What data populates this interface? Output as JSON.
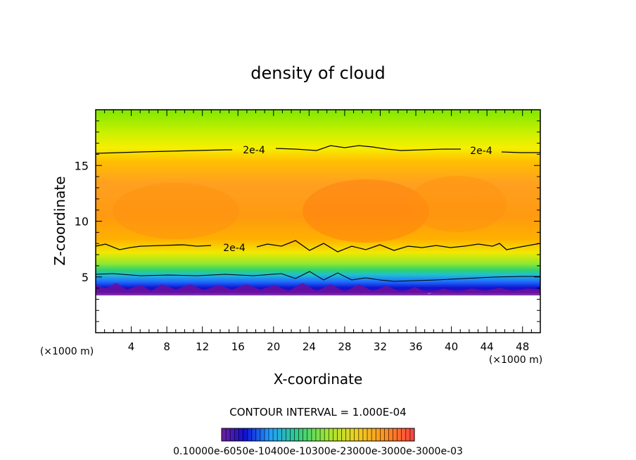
{
  "chart_data": {
    "type": "heatmap",
    "title": "density of cloud",
    "xlabel": "X-coordinate",
    "ylabel": "Z-coordinate",
    "x_unit": "(×1000 m)",
    "y_unit": "(×1000 m)",
    "xlim": [
      0,
      50
    ],
    "ylim": [
      0,
      20
    ],
    "xticks": [
      "4",
      "8",
      "12",
      "16",
      "20",
      "24",
      "28",
      "32",
      "36",
      "40",
      "44",
      "48"
    ],
    "yticks": [
      "5",
      "10",
      "15"
    ],
    "contour_interval_text": "CONTOUR INTERVAL = 1.000E-04",
    "contour_levels": [
      {
        "label": "2e-4",
        "value": 0.0002
      },
      {
        "label": "2e-4",
        "value": 0.0002
      },
      {
        "label": "2e-4",
        "value": 0.0002
      }
    ],
    "field_profile": {
      "description_values_by_height": [
        {
          "z": 3.3,
          "value": 0.0
        },
        {
          "z": 3.8,
          "value": 5e-05
        },
        {
          "z": 4.5,
          "value": 0.00012
        },
        {
          "z": 5.3,
          "value": 0.00017
        },
        {
          "z": 6.5,
          "value": 0.0002
        },
        {
          "z": 8.0,
          "value": 0.00025
        },
        {
          "z": 10.5,
          "value": 0.0003
        },
        {
          "z": 13.0,
          "value": 0.00029
        },
        {
          "z": 15.5,
          "value": 0.00023
        },
        {
          "z": 17.5,
          "value": 0.00016
        },
        {
          "z": 20.0,
          "value": 0.00013
        }
      ]
    },
    "colorbar_labels_text": "0.10000e-6050e-10400e-10300e-23000e-3000e-3000e-03",
    "grid": false
  },
  "colors": {
    "background": "#ffffff",
    "axis": "#000000",
    "contour": "#000000"
  }
}
